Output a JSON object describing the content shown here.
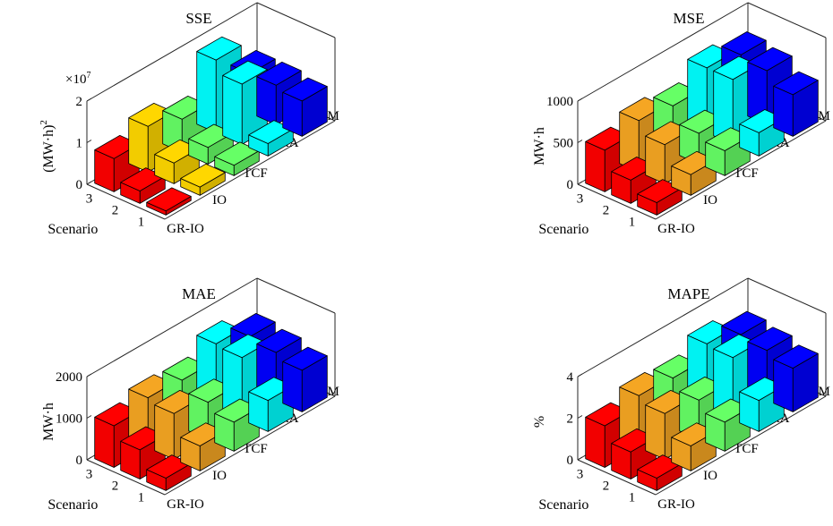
{
  "chart_data": [
    {
      "type": "bar3d",
      "title": "SSE",
      "zlabel": "(MW·h)",
      "zlabel_sup": "2",
      "multiplier": "×10",
      "multiplier_exp": "7",
      "zticks": [
        "0",
        "1",
        "2"
      ],
      "zlim": [
        0,
        2
      ],
      "ylabel": "Scenario",
      "scenarios": [
        "1",
        "2",
        "3"
      ],
      "methods": [
        "GR-IO",
        "IO",
        "TCF",
        "RA",
        "ELM"
      ],
      "colors": [
        "#ff0000",
        "#ffd700",
        "#66ff66",
        "#00ffff",
        "#0000ff"
      ],
      "values": [
        [
          0.1,
          0.2,
          0.25,
          0.3,
          0.85
        ],
        [
          0.3,
          0.5,
          0.4,
          1.45,
          0.95
        ],
        [
          0.8,
          1.1,
          0.8,
          1.75,
          0.95
        ]
      ]
    },
    {
      "type": "bar3d",
      "title": "MSE",
      "zlabel": "MW·h",
      "zticks": [
        "0",
        "500",
        "1000"
      ],
      "zlim": [
        0,
        1000
      ],
      "ylabel": "Scenario",
      "scenarios": [
        "1",
        "2",
        "3"
      ],
      "methods": [
        "GR-IO",
        "IO",
        "TCF",
        "RA",
        "ELM"
      ],
      "colors": [
        "#ff0000",
        "#f5a623",
        "#66ff66",
        "#00ffff",
        "#0000ff"
      ],
      "values": [
        [
          150,
          250,
          300,
          280,
          500
        ],
        [
          280,
          470,
          370,
          780,
          650
        ],
        [
          500,
          620,
          560,
          780,
          700
        ]
      ]
    },
    {
      "type": "bar3d",
      "title": "MAE",
      "zlabel": "MW·h",
      "zticks": [
        "0",
        "1000",
        "2000"
      ],
      "zlim": [
        0,
        2000
      ],
      "ylabel": "Scenario",
      "scenarios": [
        "1",
        "2",
        "3"
      ],
      "methods": [
        "GR-IO",
        "IO",
        "TCF",
        "RA",
        "ELM"
      ],
      "colors": [
        "#ff0000",
        "#f5a623",
        "#66ff66",
        "#00ffff",
        "#0000ff"
      ],
      "values": [
        [
          300,
          600,
          700,
          750,
          1000
        ],
        [
          700,
          1100,
          900,
          1500,
          1150
        ],
        [
          1000,
          1200,
          1150,
          1550,
          1250
        ]
      ]
    },
    {
      "type": "bar3d",
      "title": "MAPE",
      "zlabel": "%",
      "zticks": [
        "0",
        "2",
        "4"
      ],
      "zlim": [
        0,
        4
      ],
      "ylabel": "Scenario",
      "scenarios": [
        "1",
        "2",
        "3"
      ],
      "methods": [
        "GR-IO",
        "IO",
        "TCF",
        "RA",
        "ELM"
      ],
      "colors": [
        "#ff0000",
        "#f5a623",
        "#66ff66",
        "#00ffff",
        "#0000ff"
      ],
      "values": [
        [
          0.6,
          1.2,
          1.4,
          1.5,
          2.1
        ],
        [
          1.3,
          2.2,
          1.9,
          3.0,
          2.4
        ],
        [
          2.0,
          2.5,
          2.4,
          3.1,
          2.6
        ]
      ]
    }
  ]
}
